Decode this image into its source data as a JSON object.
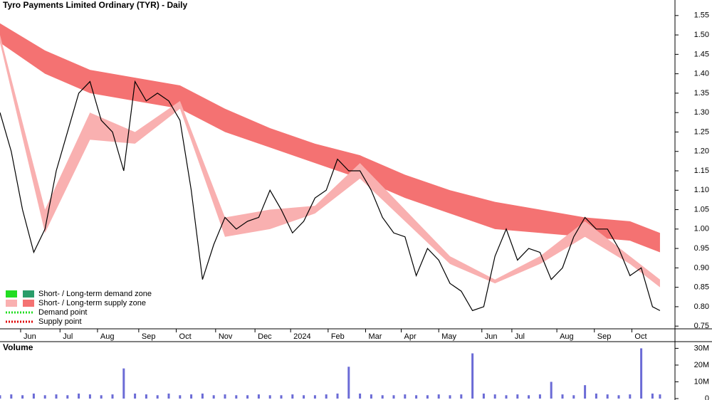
{
  "chart_data": [
    {
      "type": "line",
      "title": "Tyro Payments Limited Ordinary (TYR) - Daily",
      "xlim": [
        0,
        360
      ],
      "ylim": [
        0.743,
        1.59
      ],
      "xticks": [
        {
          "value": 11,
          "label": "Jun"
        },
        {
          "value": 32,
          "label": "Jul"
        },
        {
          "value": 52,
          "label": "Aug"
        },
        {
          "value": 74,
          "label": "Sep"
        },
        {
          "value": 94,
          "label": "Oct"
        },
        {
          "value": 115,
          "label": "Nov"
        },
        {
          "value": 136,
          "label": "Dec"
        },
        {
          "value": 155,
          "label": "2024"
        },
        {
          "value": 175,
          "label": "Feb"
        },
        {
          "value": 195,
          "label": "Mar"
        },
        {
          "value": 214,
          "label": "Apr"
        },
        {
          "value": 234,
          "label": "May"
        },
        {
          "value": 257,
          "label": "Jun"
        },
        {
          "value": 273,
          "label": "Jul"
        },
        {
          "value": 297,
          "label": "Aug"
        },
        {
          "value": 317,
          "label": "Sep"
        },
        {
          "value": 337,
          "label": "Oct"
        }
      ],
      "yticks": [
        0.75,
        {
          "value": 0.8,
          "label": "0.80"
        },
        0.85,
        {
          "value": 0.9,
          "label": "0.90"
        },
        0.95,
        {
          "value": 1.0,
          "label": "1.00"
        },
        1.05,
        {
          "value": 1.1,
          "label": "1.10"
        },
        1.15,
        {
          "value": 1.2,
          "label": "1.20"
        },
        1.25,
        {
          "value": 1.3,
          "label": "1.30"
        },
        1.35,
        {
          "value": 1.4,
          "label": "1.40"
        },
        1.45,
        {
          "value": 1.5,
          "label": "1.50"
        },
        1.55
      ],
      "x": [
        0,
        6,
        12,
        18,
        24,
        30,
        36,
        42,
        48,
        54,
        60,
        66,
        72,
        78,
        84,
        90,
        96,
        102,
        108,
        114,
        120,
        126,
        132,
        138,
        144,
        150,
        156,
        162,
        168,
        174,
        180,
        186,
        192,
        198,
        204,
        210,
        216,
        222,
        228,
        234,
        240,
        246,
        252,
        258,
        264,
        270,
        276,
        282,
        288,
        294,
        300,
        306,
        312,
        318,
        324,
        330,
        336,
        342,
        348,
        352
      ],
      "values": [
        1.3,
        1.2,
        1.05,
        0.94,
        1.0,
        1.15,
        1.25,
        1.35,
        1.38,
        1.28,
        1.25,
        1.15,
        1.38,
        1.33,
        1.35,
        1.33,
        1.28,
        1.1,
        0.87,
        0.96,
        1.03,
        1.0,
        1.02,
        1.03,
        1.1,
        1.05,
        0.99,
        1.02,
        1.08,
        1.1,
        1.18,
        1.15,
        1.15,
        1.1,
        1.03,
        0.99,
        0.98,
        0.88,
        0.95,
        0.92,
        0.86,
        0.84,
        0.79,
        0.8,
        0.93,
        1.0,
        0.92,
        0.95,
        0.94,
        0.87,
        0.9,
        0.98,
        1.03,
        1.0,
        1.0,
        0.95,
        0.88,
        0.9,
        0.8,
        0.79
      ],
      "color": "#000000",
      "band_x": [
        0,
        24,
        48,
        72,
        96,
        120,
        144,
        168,
        192,
        216,
        240,
        264,
        288,
        312,
        336,
        352
      ],
      "bands": [
        {
          "color": "#f47272",
          "upper": [
            1.53,
            1.46,
            1.41,
            1.39,
            1.37,
            1.31,
            1.26,
            1.22,
            1.19,
            1.14,
            1.1,
            1.07,
            1.05,
            1.03,
            1.02,
            0.99
          ],
          "lower": [
            1.48,
            1.4,
            1.35,
            1.33,
            1.31,
            1.25,
            1.21,
            1.17,
            1.13,
            1.08,
            1.04,
            1.0,
            0.99,
            0.98,
            0.97,
            0.94
          ]
        },
        {
          "color": "#f9b0b0",
          "upper": [
            1.5,
            1.05,
            1.3,
            1.25,
            1.33,
            1.03,
            1.05,
            1.06,
            1.17,
            1.05,
            0.93,
            0.87,
            0.93,
            1.02,
            0.93,
            0.87
          ],
          "lower": [
            1.48,
            0.99,
            1.23,
            1.22,
            1.31,
            0.98,
            1.0,
            1.04,
            1.13,
            1.02,
            0.91,
            0.86,
            0.91,
            0.98,
            0.91,
            0.85
          ]
        }
      ],
      "legend": [
        "Short- / Long-term demand zone",
        "Short- / Long-term supply zone",
        "Demand point",
        "Supply point"
      ]
    },
    {
      "type": "bar",
      "title": "Volume",
      "xlim": [
        0,
        360
      ],
      "ylim": [
        0,
        34000000
      ],
      "yticks": [
        0,
        {
          "value": 10000000,
          "label": "10M"
        },
        {
          "value": 20000000,
          "label": "20M"
        },
        {
          "value": 30000000,
          "label": "30M"
        }
      ],
      "x": [
        0,
        6,
        12,
        18,
        24,
        30,
        36,
        42,
        48,
        54,
        60,
        66,
        72,
        78,
        84,
        90,
        96,
        102,
        108,
        114,
        120,
        126,
        132,
        138,
        144,
        150,
        156,
        162,
        168,
        174,
        180,
        186,
        192,
        198,
        204,
        210,
        216,
        222,
        228,
        234,
        240,
        246,
        252,
        258,
        264,
        270,
        276,
        282,
        288,
        294,
        300,
        306,
        312,
        318,
        324,
        330,
        336,
        342,
        348,
        352
      ],
      "values": [
        2000000,
        2500000,
        2000000,
        3000000,
        2000000,
        2500000,
        2000000,
        3000000,
        2500000,
        2000000,
        2500000,
        18000000,
        3000000,
        2500000,
        2000000,
        3000000,
        2000000,
        2500000,
        3000000,
        2000000,
        2500000,
        2000000,
        2000000,
        2500000,
        2000000,
        2000000,
        2500000,
        2000000,
        2000000,
        2500000,
        3000000,
        19000000,
        3000000,
        2500000,
        2000000,
        2000000,
        2500000,
        2000000,
        2000000,
        2500000,
        2000000,
        2500000,
        27000000,
        3000000,
        2500000,
        2000000,
        2500000,
        2000000,
        2500000,
        10000000,
        2500000,
        2000000,
        8000000,
        3000000,
        2500000,
        2000000,
        2500000,
        30000000,
        3000000,
        2500000
      ],
      "color": "#6b6bd6"
    }
  ]
}
